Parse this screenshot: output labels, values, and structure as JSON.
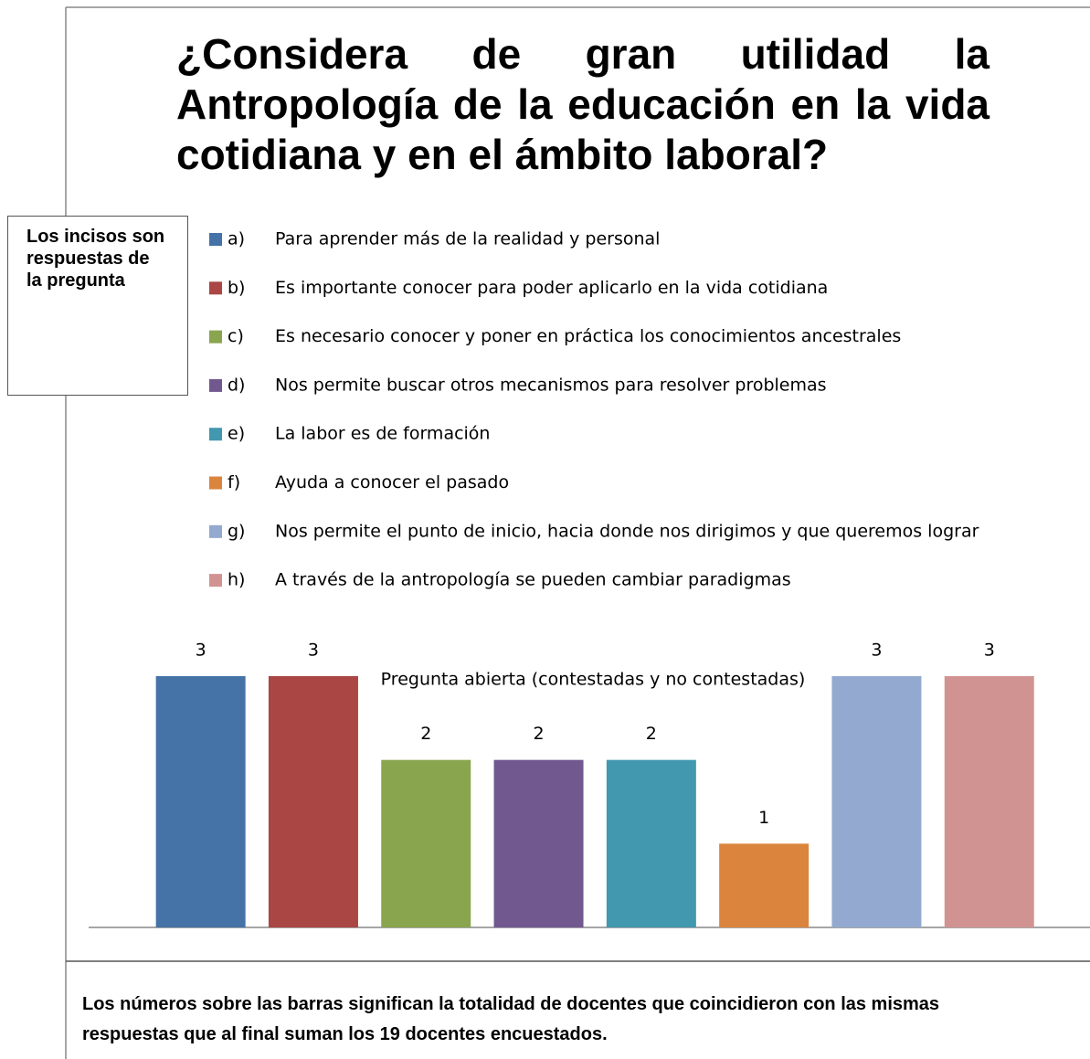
{
  "chart_data": {
    "type": "bar",
    "title": "¿Considera de gran utilidad la Antropología de la educación en la vida cotidiana y en el ámbito laboral?",
    "x_label": "Pregunta abierta (contestadas y no contestadas)",
    "annotations": [
      "Los incisos son respuestas de la pregunta",
      "Los números sobre las barras significan la totalidad de docentes que coincidieron con las mismas respuestas que al final suman los 19 docentes encuestados."
    ],
    "ylim": [
      0,
      3
    ],
    "series": [
      {
        "name": "a)",
        "description": "Para aprender más de la realidad  y personal",
        "color": "#4572a7",
        "values": [
          3
        ]
      },
      {
        "name": "b)",
        "description": "Es importante conocer para poder aplicarlo en la vida cotidiana",
        "color": "#aa4643",
        "values": [
          3
        ]
      },
      {
        "name": "c)",
        "description": "Es necesario conocer y poner en práctica los conocimientos ancestrales",
        "color": "#89a54e",
        "values": [
          2
        ]
      },
      {
        "name": "d)",
        "description": "Nos permite buscar otros mecanismos para resolver problemas",
        "color": "#71588f",
        "values": [
          2
        ]
      },
      {
        "name": "e)",
        "description": "La labor es de formación",
        "color": "#4198af",
        "values": [
          2
        ]
      },
      {
        "name": "f)",
        "description": "Ayuda a conocer el pasado",
        "color": "#db843d",
        "values": [
          1
        ]
      },
      {
        "name": "g)",
        "description": "Nos permite el punto de inicio, hacia donde nos dirigimos y que queremos lograr",
        "color": "#93a9cf",
        "values": [
          3
        ]
      },
      {
        "name": "h)",
        "description": "A través de la antropología se pueden cambiar paradigmas",
        "color": "#d19392",
        "values": [
          3
        ]
      }
    ]
  }
}
